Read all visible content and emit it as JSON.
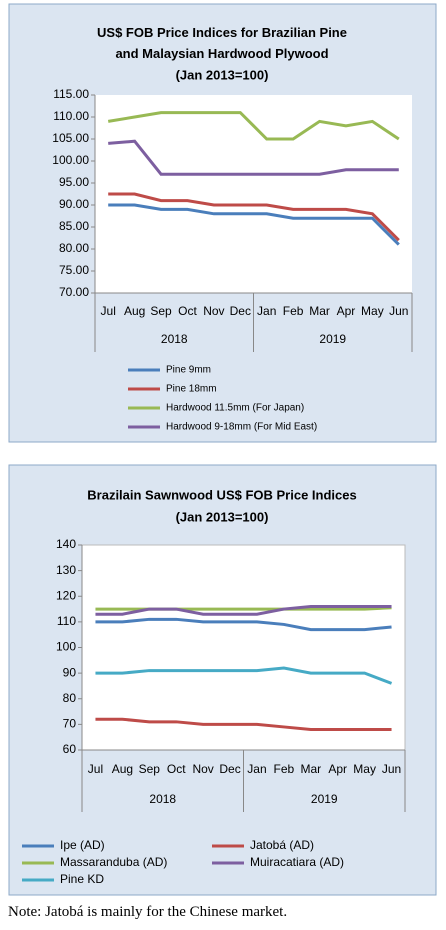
{
  "chart_data": [
    {
      "type": "line",
      "title": "US$ FOB Price Indices for Brazilian Pine and Malaysian Hardwood Plywood",
      "subtitle": "(Jan 2013=100)",
      "categories": [
        "Jul",
        "Aug",
        "Sep",
        "Oct",
        "Nov",
        "Dec",
        "Jan",
        "Feb",
        "Mar",
        "Apr",
        "May",
        "Jun"
      ],
      "year_labels": [
        "2018",
        "2019"
      ],
      "ylim": [
        70,
        115
      ],
      "yticks": [
        {
          "value": 70,
          "label": "70.00"
        },
        {
          "value": 75,
          "label": "75.00"
        },
        {
          "value": 80,
          "label": "80.00"
        },
        {
          "value": 85,
          "label": "85.00"
        },
        {
          "value": 90,
          "label": "90.00"
        },
        {
          "value": 95,
          "label": "95.00"
        },
        {
          "value": 100,
          "label": "100.00"
        },
        {
          "value": 105,
          "label": "105.00"
        },
        {
          "value": 110,
          "label": "110.00"
        },
        {
          "value": 115,
          "label": "115.00"
        }
      ],
      "grid": false,
      "series": [
        {
          "name": "Pine 9mm",
          "color": "#4a7ebb",
          "values": [
            90,
            90,
            89,
            89,
            88,
            88,
            88,
            87,
            87,
            87,
            87,
            81
          ]
        },
        {
          "name": "Pine 18mm",
          "color": "#be4b48",
          "values": [
            92.5,
            92.5,
            91,
            91,
            90,
            90,
            90,
            89,
            89,
            89,
            88,
            82
          ]
        },
        {
          "name": "Hardwood 11.5mm (For Japan)",
          "color": "#98b954",
          "values": [
            109,
            110,
            111,
            111,
            111,
            111,
            105,
            105,
            109,
            108,
            109,
            105
          ]
        },
        {
          "name": "Hardwood 9-18mm (For Mid East)",
          "color": "#7d5fa0",
          "values": [
            104,
            104.5,
            97,
            97,
            97,
            97,
            97,
            97,
            97,
            98,
            98,
            98
          ]
        }
      ]
    },
    {
      "type": "line",
      "title": "Brazilain Sawnwood US$ FOB Price Indices",
      "subtitle": "(Jan 2013=100)",
      "categories": [
        "Jul",
        "Aug",
        "Sep",
        "Oct",
        "Nov",
        "Dec",
        "Jan",
        "Feb",
        "Mar",
        "Apr",
        "May",
        "Jun"
      ],
      "year_labels": [
        "2018",
        "2019"
      ],
      "ylim": [
        60,
        140
      ],
      "yticks": [
        60,
        70,
        80,
        90,
        100,
        110,
        120,
        130,
        140
      ],
      "grid": false,
      "series": [
        {
          "name": "Ipe (AD)",
          "color": "#4a7ebb",
          "values": [
            110,
            110,
            111,
            111,
            110,
            110,
            110,
            109,
            107,
            107,
            107,
            108
          ]
        },
        {
          "name": "Jatobá (AD)",
          "color": "#be4b48",
          "values": [
            72,
            72,
            71,
            71,
            70,
            70,
            70,
            69,
            68,
            68,
            68,
            68
          ]
        },
        {
          "name": "Massaranduba (AD)",
          "color": "#98b954",
          "values": [
            115,
            115,
            115,
            115,
            115,
            115,
            115,
            115,
            115,
            115,
            115,
            115.5
          ]
        },
        {
          "name": "Muiracatiara (AD)",
          "color": "#7d5fa0",
          "values": [
            113,
            113,
            115,
            115,
            113,
            113,
            113,
            115,
            116,
            116,
            116,
            116
          ]
        },
        {
          "name": "Pine KD",
          "color": "#46aac5",
          "values": [
            90,
            90,
            91,
            91,
            91,
            91,
            91,
            92,
            90,
            90,
            90,
            86
          ]
        }
      ]
    }
  ],
  "note": "Note: Jatobá is mainly for the Chinese market."
}
